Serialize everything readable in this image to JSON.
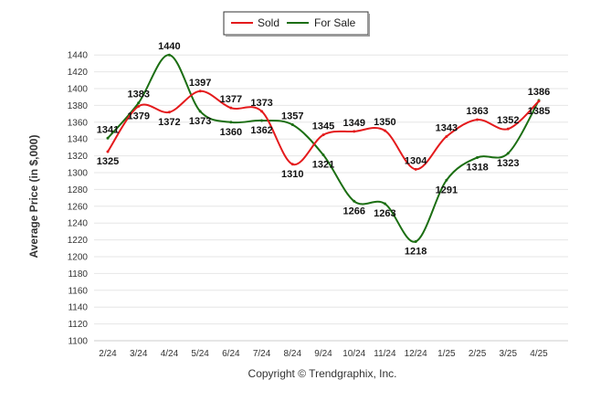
{
  "chart_data": {
    "type": "line",
    "categories": [
      "2/24",
      "3/24",
      "4/24",
      "5/24",
      "6/24",
      "7/24",
      "8/24",
      "9/24",
      "10/24",
      "11/24",
      "12/24",
      "1/25",
      "2/25",
      "3/25",
      "4/25"
    ],
    "series": [
      {
        "name": "Sold",
        "color": "#e41a1c",
        "values": [
          1325,
          1379,
          1372,
          1397,
          1377,
          1373,
          1310,
          1345,
          1349,
          1350,
          1304,
          1343,
          1363,
          1352,
          1385
        ]
      },
      {
        "name": "For Sale",
        "color": "#1b6e12",
        "values": [
          1341,
          1383,
          1440,
          1373,
          1360,
          1362,
          1357,
          1321,
          1266,
          1263,
          1218,
          1291,
          1318,
          1323,
          1386
        ]
      }
    ],
    "xlabel": "",
    "ylabel": "Average Price (in $,000)",
    "ylim": [
      1100,
      1440
    ],
    "yticks": [
      1100,
      1120,
      1140,
      1160,
      1180,
      1200,
      1220,
      1240,
      1260,
      1280,
      1300,
      1320,
      1340,
      1360,
      1380,
      1400,
      1420,
      1440
    ],
    "grid": true,
    "legend": "top-center",
    "credit": "Copyright © Trendgraphix, Inc."
  }
}
